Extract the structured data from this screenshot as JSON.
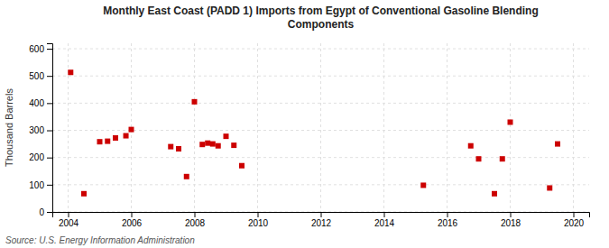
{
  "chart_data": {
    "type": "scatter",
    "title": "Monthly East Coast (PADD 1) Imports from Egypt of Conventional Gasoline Blending\nComponents",
    "ylabel": "Thousand Barrels",
    "source": "Source: U.S. Energy Information Administration",
    "x": [
      2004.08,
      2004.5,
      2005.0,
      2005.25,
      2005.5,
      2005.83,
      2006.0,
      2007.25,
      2007.5,
      2007.75,
      2008.0,
      2008.25,
      2008.42,
      2008.58,
      2008.75,
      2009.0,
      2009.25,
      2009.5,
      2015.25,
      2016.75,
      2017.0,
      2017.5,
      2017.75,
      2018.0,
      2019.25,
      2019.5
    ],
    "values": [
      513,
      67,
      258,
      260,
      272,
      280,
      303,
      240,
      232,
      130,
      405,
      248,
      253,
      250,
      243,
      278,
      245,
      170,
      98,
      243,
      195,
      67,
      195,
      330,
      88,
      250
    ],
    "color": "#cc0000",
    "marker": "square",
    "xlim": [
      2003.5,
      2020.5
    ],
    "ylim": [
      0,
      620
    ],
    "xticks": [
      2004,
      2006,
      2008,
      2010,
      2012,
      2014,
      2016,
      2018,
      2020
    ],
    "yticks": [
      0,
      100,
      200,
      300,
      400,
      500,
      600
    ],
    "grid": true
  }
}
